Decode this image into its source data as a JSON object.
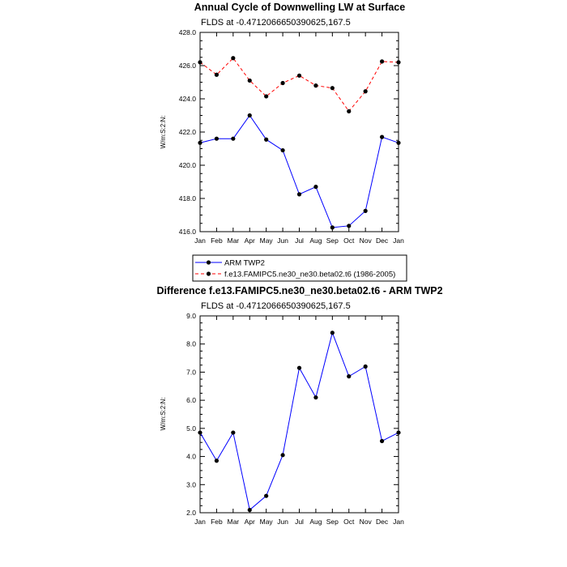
{
  "chart_data": [
    {
      "type": "line",
      "title": "Annual Cycle of Downwelling LW at Surface",
      "subtitle": "FLDS at -0.4712066650390625,167.5",
      "ylabel": "W/m:S:2:N:",
      "categories": [
        "Jan",
        "Feb",
        "Mar",
        "Apr",
        "May",
        "Jun",
        "Jul",
        "Aug",
        "Sep",
        "Oct",
        "Nov",
        "Dec",
        "Jan"
      ],
      "ylim": [
        416.0,
        428.0
      ],
      "yticks": [
        "416.0",
        "418.0",
        "420.0",
        "422.0",
        "424.0",
        "426.0",
        "428.0"
      ],
      "series": [
        {
          "name": "ARM TWP2",
          "color": "#0000ff",
          "dash": "solid",
          "values": [
            421.35,
            421.6,
            421.6,
            423.0,
            421.55,
            420.9,
            418.25,
            418.7,
            416.25,
            416.35,
            417.25,
            421.7,
            421.35
          ]
        },
        {
          "name": "f.e13.FAMIPC5.ne30_ne30.beta02.t6 (1986-2005)",
          "color": "#ff0000",
          "dash": "dashed",
          "values": [
            426.2,
            425.45,
            426.45,
            425.1,
            424.15,
            424.95,
            425.4,
            424.8,
            424.65,
            423.25,
            424.45,
            426.25,
            426.2
          ]
        }
      ],
      "legend": [
        "ARM TWP2",
        "f.e13.FAMIPC5.ne30_ne30.beta02.t6 (1986-2005)"
      ]
    },
    {
      "type": "line",
      "title": "Difference f.e13.FAMIPC5.ne30_ne30.beta02.t6 - ARM TWP2",
      "subtitle": "FLDS at -0.4712066650390625,167.5",
      "ylabel": "W/m:S:2:N:",
      "categories": [
        "Jan",
        "Feb",
        "Mar",
        "Apr",
        "May",
        "Jun",
        "Jul",
        "Aug",
        "Sep",
        "Oct",
        "Nov",
        "Dec",
        "Jan"
      ],
      "ylim": [
        2.0,
        9.0
      ],
      "yticks": [
        "2.0",
        "3.0",
        "4.0",
        "5.0",
        "6.0",
        "7.0",
        "8.0",
        "9.0"
      ],
      "series": [
        {
          "name": "Difference",
          "color": "#0000ff",
          "dash": "solid",
          "values": [
            4.85,
            3.85,
            4.85,
            2.1,
            2.6,
            4.05,
            7.15,
            6.1,
            8.4,
            6.85,
            7.2,
            4.55,
            4.85
          ]
        }
      ]
    }
  ]
}
